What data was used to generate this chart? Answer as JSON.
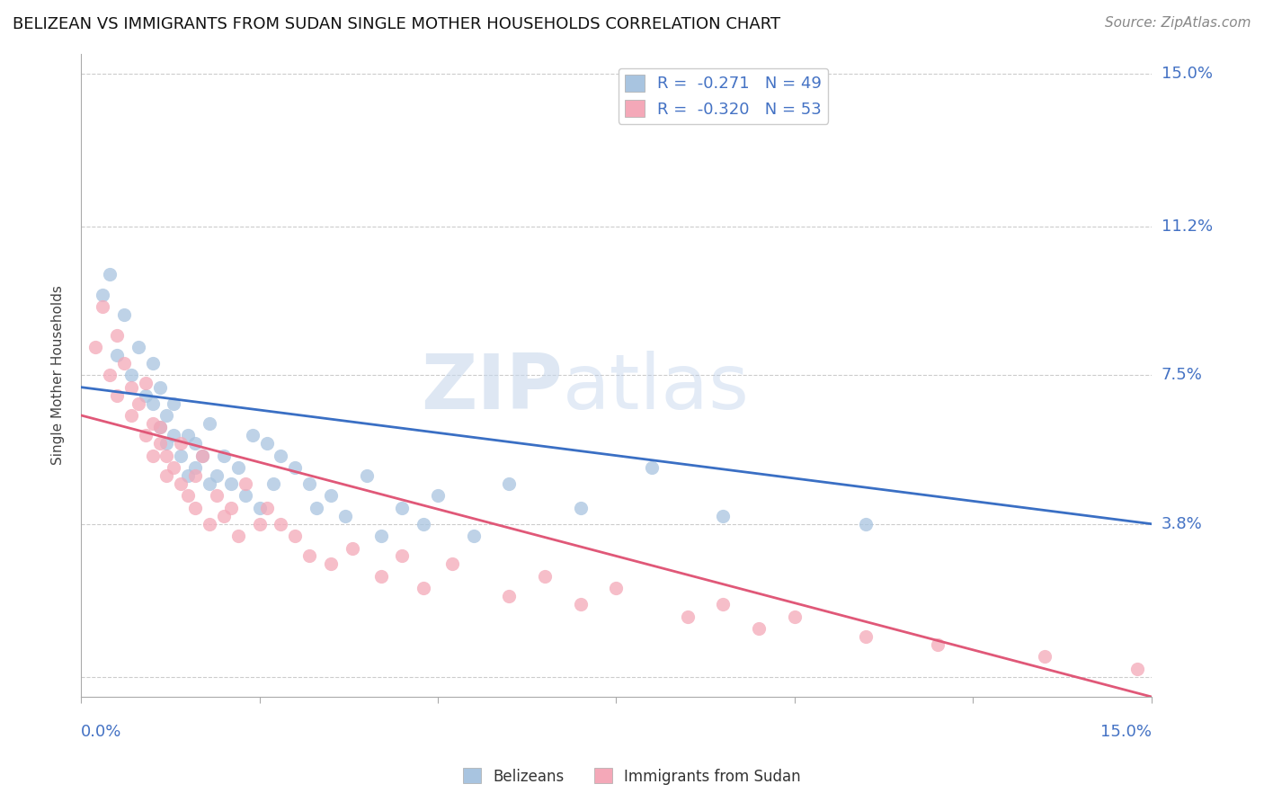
{
  "title": "BELIZEAN VS IMMIGRANTS FROM SUDAN SINGLE MOTHER HOUSEHOLDS CORRELATION CHART",
  "source": "Source: ZipAtlas.com",
  "ylabel": "Single Mother Households",
  "xlim": [
    0.0,
    0.15
  ],
  "ylim": [
    -0.005,
    0.155
  ],
  "watermark_zip": "ZIP",
  "watermark_atlas": "atlas",
  "blue_scatter_color": "#a8c4e0",
  "pink_scatter_color": "#f4a8b8",
  "blue_line_color": "#3a6fc4",
  "pink_line_color": "#e05878",
  "axis_label_color": "#4472c4",
  "grid_color": "#cccccc",
  "legend_labels": [
    "Belizeans",
    "Immigrants from Sudan"
  ],
  "blue_legend_label": "R =  -0.271   N = 49",
  "pink_legend_label": "R =  -0.320   N = 53",
  "blue_line_x0": 0.0,
  "blue_line_y0": 0.072,
  "blue_line_x1": 0.15,
  "blue_line_y1": 0.038,
  "pink_line_x0": 0.0,
  "pink_line_y0": 0.065,
  "pink_line_x1": 0.15,
  "pink_line_y1": -0.005,
  "belizean_x": [
    0.003,
    0.004,
    0.005,
    0.006,
    0.007,
    0.008,
    0.009,
    0.01,
    0.01,
    0.011,
    0.011,
    0.012,
    0.012,
    0.013,
    0.013,
    0.014,
    0.015,
    0.015,
    0.016,
    0.016,
    0.017,
    0.018,
    0.018,
    0.019,
    0.02,
    0.021,
    0.022,
    0.023,
    0.024,
    0.025,
    0.026,
    0.027,
    0.028,
    0.03,
    0.032,
    0.033,
    0.035,
    0.037,
    0.04,
    0.042,
    0.045,
    0.048,
    0.05,
    0.055,
    0.06,
    0.07,
    0.08,
    0.09,
    0.11
  ],
  "belizean_y": [
    0.095,
    0.1,
    0.08,
    0.09,
    0.075,
    0.082,
    0.07,
    0.068,
    0.078,
    0.072,
    0.062,
    0.065,
    0.058,
    0.06,
    0.068,
    0.055,
    0.06,
    0.05,
    0.058,
    0.052,
    0.055,
    0.048,
    0.063,
    0.05,
    0.055,
    0.048,
    0.052,
    0.045,
    0.06,
    0.042,
    0.058,
    0.048,
    0.055,
    0.052,
    0.048,
    0.042,
    0.045,
    0.04,
    0.05,
    0.035,
    0.042,
    0.038,
    0.045,
    0.035,
    0.048,
    0.042,
    0.052,
    0.04,
    0.038
  ],
  "sudan_x": [
    0.002,
    0.003,
    0.004,
    0.005,
    0.005,
    0.006,
    0.007,
    0.007,
    0.008,
    0.009,
    0.009,
    0.01,
    0.01,
    0.011,
    0.011,
    0.012,
    0.012,
    0.013,
    0.014,
    0.014,
    0.015,
    0.016,
    0.016,
    0.017,
    0.018,
    0.019,
    0.02,
    0.021,
    0.022,
    0.023,
    0.025,
    0.026,
    0.028,
    0.03,
    0.032,
    0.035,
    0.038,
    0.042,
    0.045,
    0.048,
    0.052,
    0.06,
    0.065,
    0.07,
    0.075,
    0.085,
    0.09,
    0.095,
    0.1,
    0.11,
    0.12,
    0.135,
    0.148
  ],
  "sudan_y": [
    0.082,
    0.092,
    0.075,
    0.085,
    0.07,
    0.078,
    0.072,
    0.065,
    0.068,
    0.06,
    0.073,
    0.055,
    0.063,
    0.058,
    0.062,
    0.05,
    0.055,
    0.052,
    0.058,
    0.048,
    0.045,
    0.05,
    0.042,
    0.055,
    0.038,
    0.045,
    0.04,
    0.042,
    0.035,
    0.048,
    0.038,
    0.042,
    0.038,
    0.035,
    0.03,
    0.028,
    0.032,
    0.025,
    0.03,
    0.022,
    0.028,
    0.02,
    0.025,
    0.018,
    0.022,
    0.015,
    0.018,
    0.012,
    0.015,
    0.01,
    0.008,
    0.005,
    0.002
  ]
}
